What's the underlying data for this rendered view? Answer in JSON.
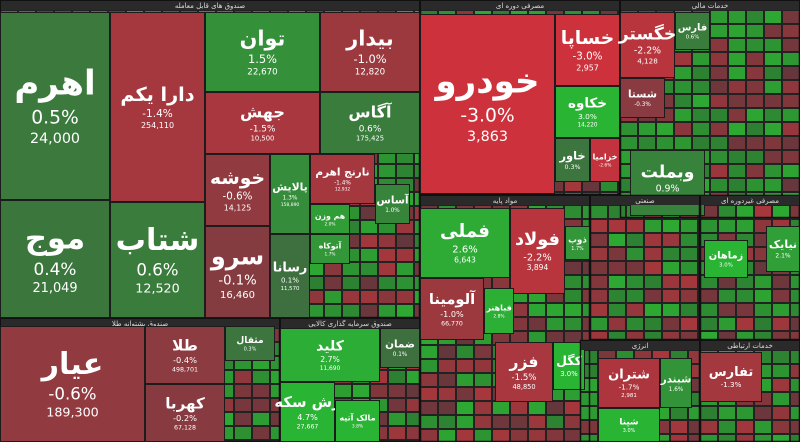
{
  "sections": [
    {
      "title": "صندوق های قابل معامله",
      "tiles": [
        {
          "name": "اهرم",
          "change": "0.5%",
          "price": "24,000"
        },
        {
          "name": "موج",
          "change": "0.4%",
          "price": "21,049"
        },
        {
          "name": "دارا یکم",
          "change": "-1.4%",
          "price": "254,110"
        },
        {
          "name": "شتاب",
          "change": "0.6%",
          "price": "12,520"
        },
        {
          "name": "توان",
          "change": "1.5%",
          "price": "22,670"
        },
        {
          "name": "بیدار",
          "change": "-1.0%",
          "price": "12,820"
        },
        {
          "name": "جهش",
          "change": "-1.5%",
          "price": "10,500"
        },
        {
          "name": "آگاس",
          "change": "0.6%",
          "price": "175,425"
        },
        {
          "name": "خوشه",
          "change": "-0.6%",
          "price": "14,125"
        },
        {
          "name": "سرو",
          "change": "-0.1%",
          "price": "16,460"
        },
        {
          "name": "پالایش",
          "change": "1.3%",
          "price": "158,890"
        },
        {
          "name": "رسانا",
          "change": "0.1%",
          "price": "11,570"
        },
        {
          "name": "نارنج اهرم",
          "change": "-1.4%",
          "price": "12,932"
        },
        {
          "name": "آساس",
          "change": "1.0%"
        },
        {
          "name": "هم وزن",
          "change": "2.0%"
        },
        {
          "name": "آتوکاه",
          "change": "1.7%"
        }
      ]
    },
    {
      "title": "صندوق پشتوانه طلا",
      "tiles": [
        {
          "name": "عیار",
          "change": "-0.6%",
          "price": "189,300"
        },
        {
          "name": "طلا",
          "change": "-0.4%",
          "price": "498,701"
        },
        {
          "name": "کهربا",
          "change": "-0.2%",
          "price": "67,128"
        },
        {
          "name": "مثقال",
          "change": "0.3%"
        }
      ]
    },
    {
      "title": "صندوق سرمایه گذاری کالایی",
      "tiles": [
        {
          "name": "کلید",
          "change": "2.7%",
          "price": "11,690"
        },
        {
          "name": "زش سکه",
          "change": "4.7%",
          "price": "27,667"
        },
        {
          "name": "مالک آتیه",
          "change": "3.8%"
        },
        {
          "name": "ضمان",
          "change": "0.1%"
        }
      ]
    },
    {
      "title": "مصرفی دوره ای",
      "tiles": [
        {
          "name": "خودرو",
          "change": "-3.0%",
          "price": "3,863"
        },
        {
          "name": "خساپا",
          "change": "-3.0%",
          "price": "2,957"
        },
        {
          "name": "خکاوه",
          "change": "3.0%",
          "price": "14,220"
        },
        {
          "name": "خزامیا",
          "change": "-2.6%"
        },
        {
          "name": "خاور",
          "change": "0.3%"
        }
      ]
    },
    {
      "title": "خدمات مالی",
      "tiles": [
        {
          "name": "خگستر",
          "change": "-2.2%",
          "price": "4,128"
        },
        {
          "name": "فارس",
          "change": "0.6%"
        },
        {
          "name": "شستا",
          "change": "-0.3%"
        },
        {
          "name": "وبملت",
          "change": "0.9%",
          "price": "2,076"
        }
      ]
    },
    {
      "title": "مواد پایه",
      "tiles": [
        {
          "name": "فملی",
          "change": "2.6%",
          "price": "6,643"
        },
        {
          "name": "فولاد",
          "change": "-2.2%",
          "price": "3,894"
        },
        {
          "name": "آلومینا",
          "change": "-1.0%",
          "price": "66,770"
        },
        {
          "name": "فباهنر",
          "change": "2.8%"
        },
        {
          "name": "ذوب",
          "change": "1.7%"
        },
        {
          "name": "فزر",
          "change": "-1.5%",
          "price": "48,850"
        },
        {
          "name": "کگل",
          "change": "3.0%"
        }
      ]
    },
    {
      "title": "صنعتی",
      "tiles": []
    },
    {
      "title": "مصرفی غیردوره ای",
      "tiles": [
        {
          "name": "زماهان",
          "change": "3.0%"
        },
        {
          "name": "نیایک",
          "change": "2.1%"
        }
      ]
    },
    {
      "title": "انرژی",
      "tiles": [
        {
          "name": "شتران",
          "change": "-1.7%",
          "price": "2,981"
        },
        {
          "name": "شبندر",
          "change": "1.6%"
        },
        {
          "name": "شپنا",
          "change": "3.0%"
        }
      ]
    },
    {
      "title": "خدمات ارتباطی",
      "tiles": [
        {
          "name": "تفارس",
          "change": "-1.3%"
        }
      ]
    }
  ]
}
